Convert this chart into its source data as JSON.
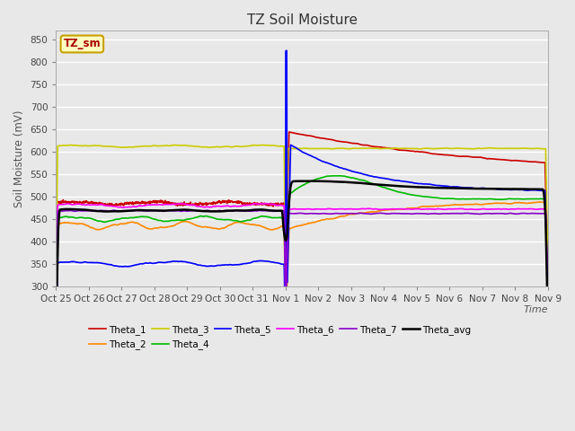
{
  "title": "TZ Soil Moisture",
  "ylabel": "Soil Moisture (mV)",
  "xlabel": "Time",
  "ylim": [
    300,
    870
  ],
  "yticks": [
    300,
    350,
    400,
    450,
    500,
    550,
    600,
    650,
    700,
    750,
    800,
    850
  ],
  "plot_bg_color": "#e8e8e8",
  "legend_box_facecolor": "#ffffc0",
  "legend_box_edgecolor": "#c8a000",
  "series": {
    "Theta_1": {
      "color": "#cc0000",
      "lw": 1.2
    },
    "Theta_2": {
      "color": "#ff8800",
      "lw": 1.2
    },
    "Theta_3": {
      "color": "#cccc00",
      "lw": 1.2
    },
    "Theta_4": {
      "color": "#00bb00",
      "lw": 1.2
    },
    "Theta_5": {
      "color": "#0000ff",
      "lw": 1.2
    },
    "Theta_6": {
      "color": "#ff00ff",
      "lw": 1.2
    },
    "Theta_7": {
      "color": "#8800cc",
      "lw": 1.2
    },
    "Theta_avg": {
      "color": "#000000",
      "lw": 1.8
    }
  },
  "xtick_labels": [
    "Oct 25",
    "Oct 26",
    "Oct 27",
    "Oct 28",
    "Oct 29",
    "Oct 30",
    "Oct 31",
    "Nov 1",
    "Nov 2",
    "Nov 3",
    "Nov 4",
    "Nov 5",
    "Nov 6",
    "Nov 7",
    "Nov 8",
    "Nov 9"
  ],
  "n_days": 15,
  "n_points": 1500,
  "event_day": 7.0
}
